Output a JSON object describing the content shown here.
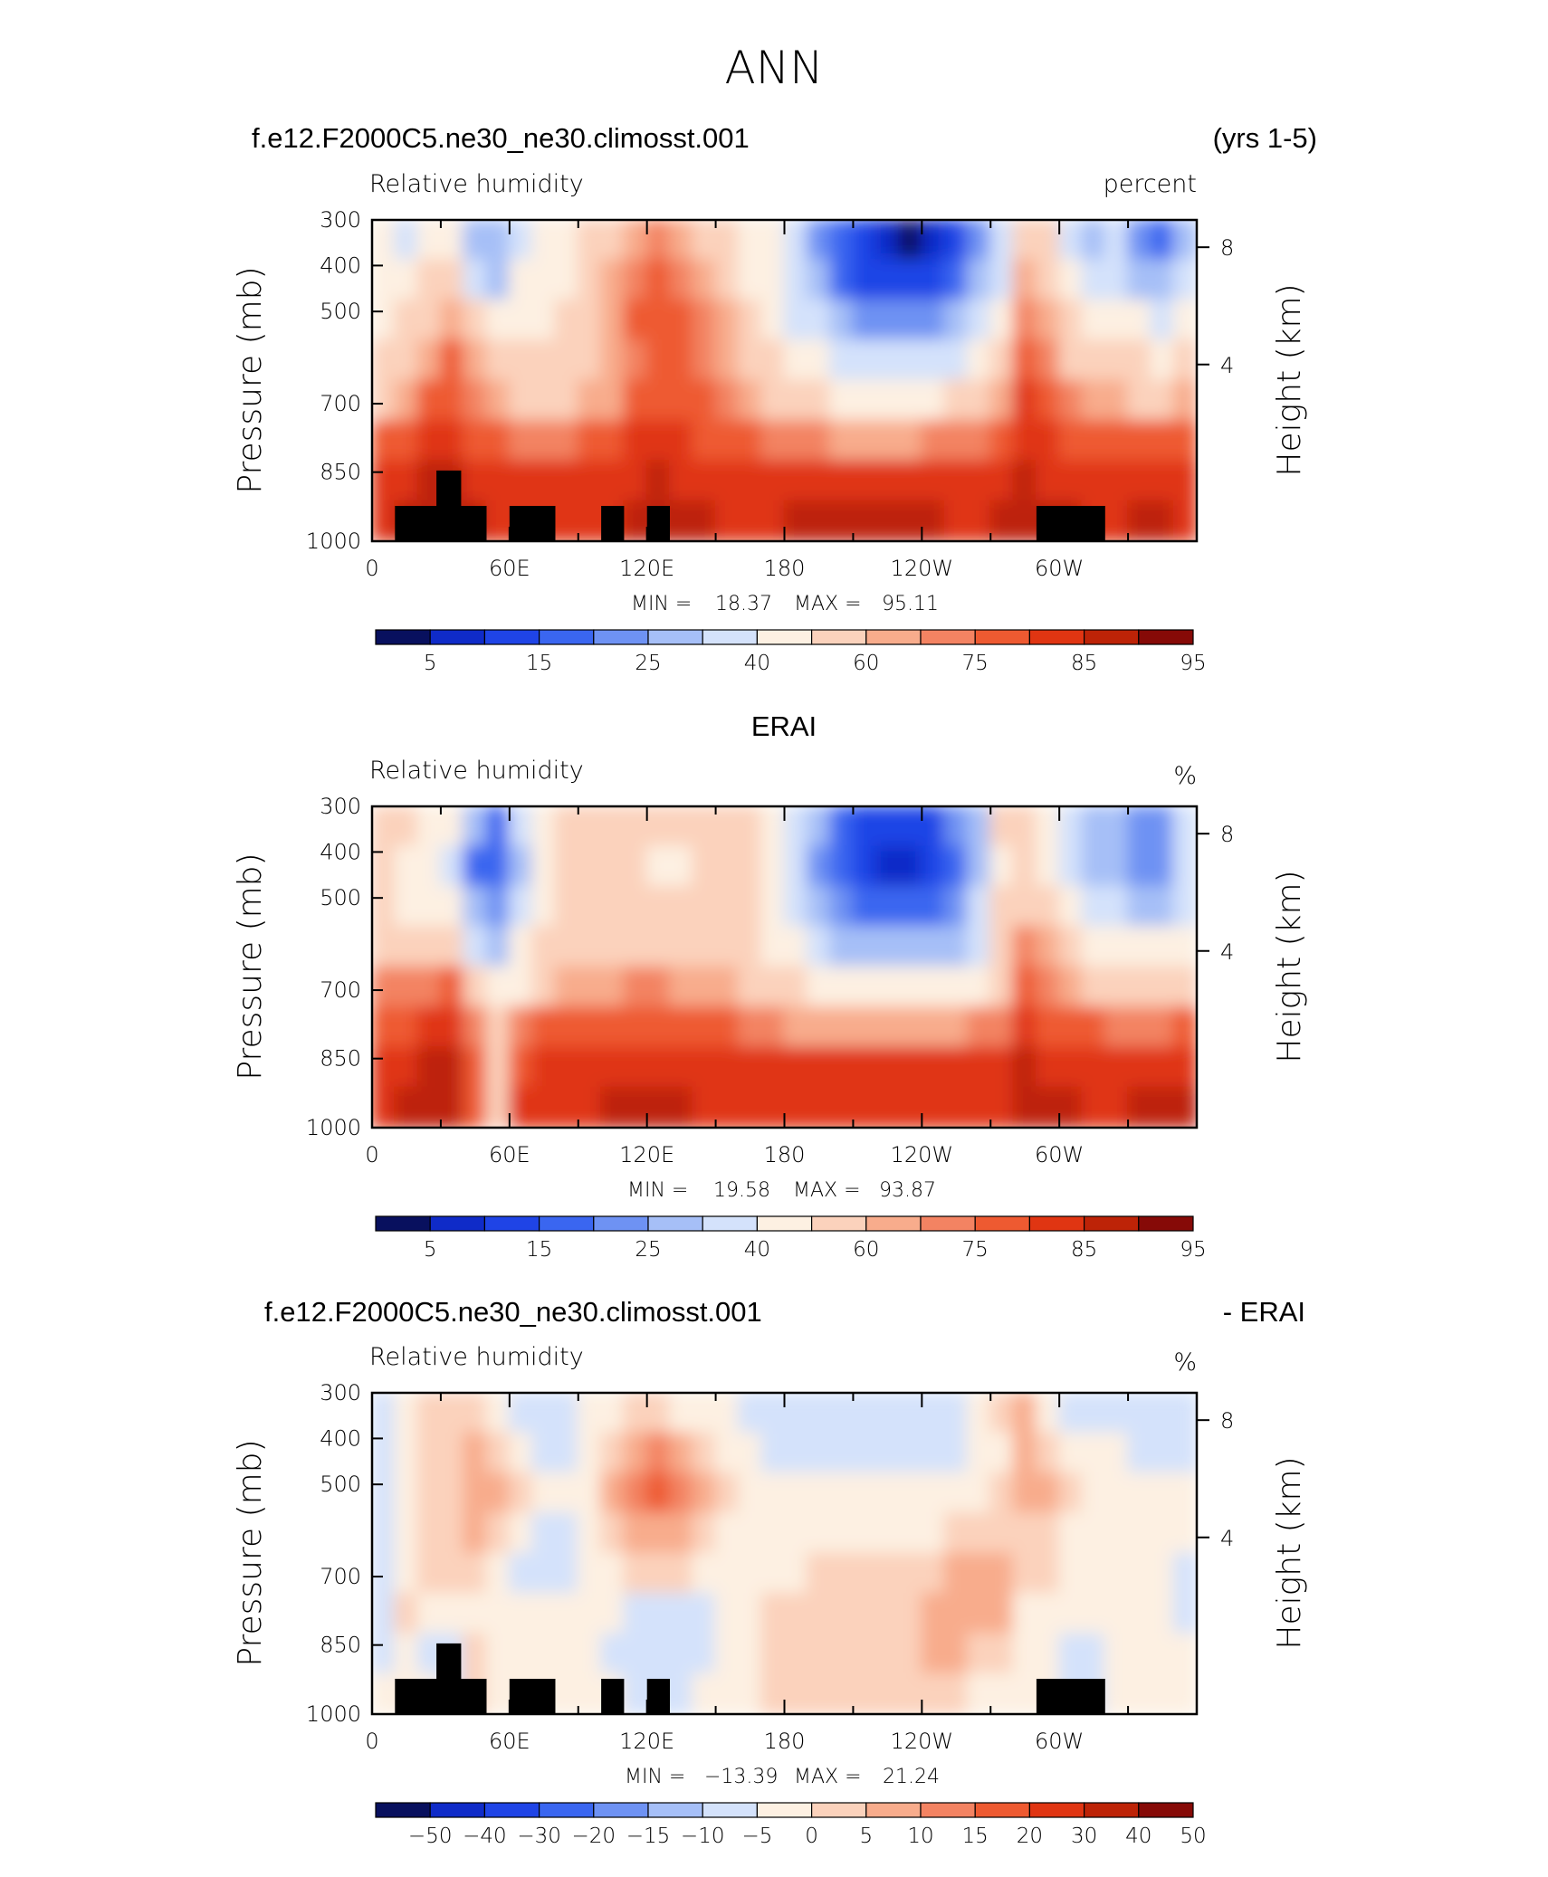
{
  "page_title": "ANN",
  "colors": {
    "positive_scale": [
      "#08105e",
      "#0f2bc8",
      "#1f44e6",
      "#3a66f0",
      "#6e92f3",
      "#a6bff7",
      "#d4e2fb",
      "#fdf0e2",
      "#fbd2bc",
      "#f8ac8c",
      "#f38362",
      "#ee5a31",
      "#e03512",
      "#bd2307",
      "#860a07"
    ]
  },
  "chart_data": [
    {
      "type": "heatmap",
      "title_left": "f.e12.F2000C5.ne30_ne30.climosst.001",
      "title_right": "(yrs 1-5)",
      "subtitle_left": "Relative  humidity",
      "subtitle_right": "percent",
      "ylabel": "Pressure  (mb)",
      "ylabel_right": "Height  (km)",
      "y_ticks": [
        "300",
        "400",
        "500",
        "700",
        "850",
        "1000"
      ],
      "y_right_ticks": [
        "8",
        "4"
      ],
      "x_ticks": [
        "0",
        "60E",
        "120E",
        "180",
        "120W",
        "60W"
      ],
      "min_label": "MIN  =",
      "min_value": "18.37",
      "max_label": "MAX  =",
      "max_value": "95.11",
      "colorbar_labels": [
        "5",
        "15",
        "25",
        "40",
        "60",
        "75",
        "85",
        "95"
      ],
      "field": [
        [
          50,
          48,
          55,
          58,
          35,
          30,
          40,
          55,
          57,
          60,
          68,
          72,
          75,
          70,
          68,
          62,
          58,
          55,
          40,
          28,
          20,
          15,
          10,
          8,
          10,
          15,
          25,
          40,
          62,
          60,
          45,
          35,
          40,
          28,
          20,
          35
        ],
        [
          55,
          58,
          62,
          65,
          40,
          35,
          50,
          55,
          58,
          60,
          72,
          78,
          80,
          76,
          72,
          65,
          58,
          50,
          40,
          30,
          22,
          18,
          15,
          15,
          18,
          22,
          30,
          45,
          70,
          68,
          55,
          45,
          48,
          38,
          30,
          45
        ],
        [
          58,
          62,
          66,
          70,
          62,
          55,
          58,
          58,
          60,
          62,
          74,
          80,
          82,
          80,
          76,
          70,
          60,
          55,
          48,
          40,
          32,
          28,
          25,
          25,
          28,
          32,
          40,
          55,
          75,
          72,
          62,
          55,
          55,
          50,
          45,
          52
        ],
        [
          62,
          66,
          72,
          80,
          70,
          62,
          62,
          62,
          62,
          65,
          72,
          78,
          82,
          80,
          78,
          72,
          64,
          60,
          55,
          50,
          45,
          42,
          40,
          40,
          42,
          46,
          52,
          62,
          80,
          76,
          68,
          62,
          62,
          60,
          58,
          62
        ],
        [
          68,
          74,
          80,
          84,
          76,
          70,
          68,
          68,
          68,
          70,
          74,
          80,
          84,
          82,
          80,
          76,
          70,
          66,
          62,
          60,
          58,
          56,
          55,
          55,
          56,
          60,
          64,
          72,
          86,
          82,
          76,
          70,
          70,
          68,
          68,
          70
        ],
        [
          80,
          84,
          86,
          88,
          84,
          80,
          78,
          78,
          78,
          80,
          82,
          86,
          88,
          86,
          84,
          82,
          80,
          78,
          76,
          75,
          74,
          74,
          74,
          74,
          75,
          76,
          78,
          82,
          88,
          86,
          84,
          80,
          80,
          80,
          80,
          80
        ],
        [
          86,
          88,
          90,
          92,
          88,
          86,
          86,
          86,
          86,
          86,
          86,
          88,
          90,
          88,
          88,
          86,
          86,
          86,
          86,
          86,
          86,
          86,
          86,
          86,
          86,
          86,
          86,
          88,
          90,
          88,
          88,
          86,
          86,
          86,
          86,
          86
        ],
        [
          88,
          90,
          92,
          94,
          90,
          88,
          88,
          88,
          88,
          88,
          88,
          90,
          92,
          90,
          90,
          88,
          88,
          88,
          90,
          90,
          92,
          92,
          92,
          90,
          90,
          88,
          88,
          90,
          92,
          90,
          90,
          88,
          88,
          90,
          90,
          88
        ]
      ],
      "mask": [
        [
          1,
          4,
          7
        ],
        [
          2,
          5,
          7
        ],
        [
          7,
          8,
          7
        ],
        [
          6,
          8,
          7
        ],
        [
          10,
          11,
          7
        ],
        [
          12,
          13,
          7
        ],
        [
          29,
          32,
          7
        ]
      ]
    },
    {
      "type": "heatmap",
      "title_left": "",
      "title_center": "ERAI",
      "title_right": "",
      "subtitle_left": "Relative  humidity",
      "subtitle_right": "%",
      "ylabel": "Pressure  (mb)",
      "ylabel_right": "Height  (km)",
      "y_ticks": [
        "300",
        "400",
        "500",
        "700",
        "850",
        "1000"
      ],
      "y_right_ticks": [
        "8",
        "4"
      ],
      "x_ticks": [
        "0",
        "60E",
        "120E",
        "180",
        "120W",
        "60W"
      ],
      "min_label": "MIN  =",
      "min_value": "19.58",
      "max_label": "MAX  =",
      "max_value": "93.87",
      "colorbar_labels": [
        "5",
        "15",
        "25",
        "40",
        "60",
        "75",
        "85",
        "95"
      ],
      "field": [
        [
          62,
          60,
          58,
          50,
          30,
          22,
          40,
          55,
          60,
          62,
          66,
          68,
          62,
          60,
          66,
          66,
          60,
          55,
          42,
          30,
          22,
          18,
          15,
          15,
          18,
          26,
          38,
          60,
          62,
          55,
          45,
          36,
          30,
          26,
          25,
          40
        ],
        [
          62,
          58,
          56,
          48,
          22,
          20,
          38,
          52,
          60,
          62,
          64,
          66,
          58,
          56,
          64,
          66,
          60,
          55,
          40,
          28,
          20,
          16,
          14,
          14,
          16,
          24,
          36,
          58,
          64,
          58,
          48,
          38,
          32,
          28,
          26,
          42
        ],
        [
          62,
          58,
          58,
          50,
          35,
          28,
          42,
          55,
          62,
          64,
          66,
          66,
          62,
          62,
          64,
          66,
          60,
          55,
          45,
          34,
          26,
          22,
          20,
          20,
          22,
          28,
          40,
          60,
          66,
          60,
          52,
          45,
          40,
          36,
          35,
          48
        ],
        [
          68,
          66,
          66,
          64,
          48,
          38,
          50,
          60,
          66,
          66,
          68,
          68,
          68,
          68,
          66,
          66,
          62,
          58,
          52,
          45,
          38,
          34,
          32,
          32,
          34,
          38,
          48,
          62,
          76,
          70,
          62,
          58,
          56,
          55,
          55,
          58
        ],
        [
          76,
          76,
          78,
          82,
          68,
          50,
          58,
          66,
          70,
          70,
          74,
          76,
          76,
          74,
          72,
          70,
          66,
          64,
          60,
          56,
          52,
          50,
          50,
          50,
          52,
          54,
          58,
          66,
          84,
          78,
          72,
          66,
          64,
          62,
          62,
          66
        ],
        [
          82,
          84,
          86,
          86,
          78,
          60,
          76,
          80,
          80,
          80,
          82,
          84,
          84,
          82,
          80,
          80,
          78,
          76,
          74,
          72,
          72,
          72,
          72,
          72,
          72,
          74,
          76,
          78,
          88,
          84,
          82,
          80,
          78,
          76,
          78,
          80
        ],
        [
          86,
          88,
          90,
          90,
          82,
          60,
          84,
          86,
          86,
          86,
          88,
          88,
          88,
          88,
          86,
          86,
          86,
          86,
          86,
          86,
          86,
          86,
          86,
          86,
          86,
          86,
          86,
          86,
          90,
          88,
          88,
          86,
          86,
          88,
          88,
          88
        ],
        [
          88,
          90,
          92,
          92,
          84,
          60,
          86,
          88,
          88,
          88,
          90,
          90,
          90,
          90,
          88,
          88,
          88,
          88,
          88,
          88,
          88,
          88,
          88,
          88,
          88,
          88,
          88,
          88,
          92,
          90,
          90,
          88,
          88,
          90,
          90,
          90
        ]
      ],
      "mask": []
    },
    {
      "type": "heatmap",
      "title_left": "f.e12.F2000C5.ne30_ne30.climosst.001",
      "title_right": "- ERAI",
      "subtitle_left": "Relative  humidity",
      "subtitle_right": "%",
      "ylabel": "Pressure  (mb)",
      "ylabel_right": "Height  (km)",
      "y_ticks": [
        "300",
        "400",
        "500",
        "700",
        "850",
        "1000"
      ],
      "y_right_ticks": [
        "8",
        "4"
      ],
      "x_ticks": [
        "0",
        "60E",
        "120E",
        "180",
        "120W",
        "60W"
      ],
      "min_label": "MIN  =",
      "min_value": "−13.39",
      "max_label": "MAX  =",
      "max_value": "21.24",
      "colorbar_labels": [
        "−50",
        "−40",
        "−30",
        "−20",
        "−15",
        "−10",
        "−5",
        "0",
        "5",
        "10",
        "15",
        "20",
        "30",
        "40",
        "50"
      ],
      "field": [
        [
          -2,
          3,
          5,
          6,
          7,
          4,
          -3,
          -7,
          -6,
          2,
          4,
          6,
          8,
          4,
          2,
          2,
          -2,
          -3,
          -2,
          -3,
          -4,
          -2,
          -2,
          -3,
          -3,
          -2,
          4,
          8,
          12,
          2,
          -3,
          -2,
          -2,
          -3,
          -2,
          -2
        ],
        [
          -2,
          3,
          5,
          7,
          10,
          8,
          2,
          -3,
          -3,
          2,
          6,
          12,
          16,
          10,
          6,
          4,
          2,
          -1,
          -1,
          -1,
          -2,
          -2,
          -3,
          -3,
          -2,
          -1,
          2,
          4,
          10,
          8,
          4,
          3,
          2,
          -2,
          -3,
          -2
        ],
        [
          -3,
          2,
          6,
          8,
          12,
          10,
          6,
          2,
          2,
          3,
          10,
          16,
          20,
          16,
          12,
          8,
          4,
          2,
          1,
          1,
          1,
          1,
          1,
          1,
          2,
          2,
          3,
          5,
          12,
          10,
          6,
          4,
          3,
          2,
          2,
          2
        ],
        [
          -2,
          2,
          6,
          8,
          10,
          6,
          2,
          -4,
          -6,
          2,
          6,
          10,
          14,
          12,
          8,
          4,
          2,
          2,
          2,
          3,
          3,
          3,
          3,
          4,
          4,
          5,
          6,
          7,
          8,
          7,
          4,
          3,
          3,
          2,
          2,
          2
        ],
        [
          -3,
          4,
          6,
          6,
          6,
          3,
          -2,
          -4,
          -3,
          3,
          4,
          6,
          6,
          5,
          4,
          2,
          3,
          3,
          4,
          5,
          6,
          6,
          6,
          7,
          9,
          10,
          11,
          10,
          6,
          5,
          4,
          3,
          3,
          2,
          2,
          -3
        ],
        [
          -2,
          5,
          4,
          3,
          4,
          2,
          1,
          2,
          2,
          3,
          2,
          -1,
          -2,
          -2,
          -1,
          1,
          4,
          6,
          6,
          7,
          8,
          8,
          5,
          8,
          12,
          14,
          13,
          10,
          4,
          3,
          4,
          3,
          3,
          2,
          2,
          -2
        ],
        [
          -2,
          4,
          -4,
          -7,
          6,
          4,
          2,
          2,
          3,
          2,
          -2,
          -3,
          -3,
          -3,
          -2,
          1,
          4,
          6,
          7,
          7,
          8,
          8,
          8,
          9,
          10,
          10,
          8,
          5,
          2,
          1,
          -2,
          -2,
          3,
          4,
          3,
          2
        ],
        [
          2,
          4,
          2,
          -4,
          6,
          4,
          2,
          2,
          3,
          3,
          2,
          -3,
          -3,
          -2,
          2,
          3,
          4,
          5,
          5,
          5,
          5,
          5,
          5,
          5,
          5,
          5,
          4,
          4,
          2,
          2,
          -2,
          -2,
          2,
          2,
          2,
          2
        ]
      ],
      "mask": [
        [
          1,
          4,
          7
        ],
        [
          2,
          5,
          7
        ],
        [
          7,
          8,
          7
        ],
        [
          6,
          8,
          7
        ],
        [
          10,
          11,
          7
        ],
        [
          12,
          13,
          7
        ],
        [
          29,
          32,
          7
        ]
      ]
    }
  ]
}
